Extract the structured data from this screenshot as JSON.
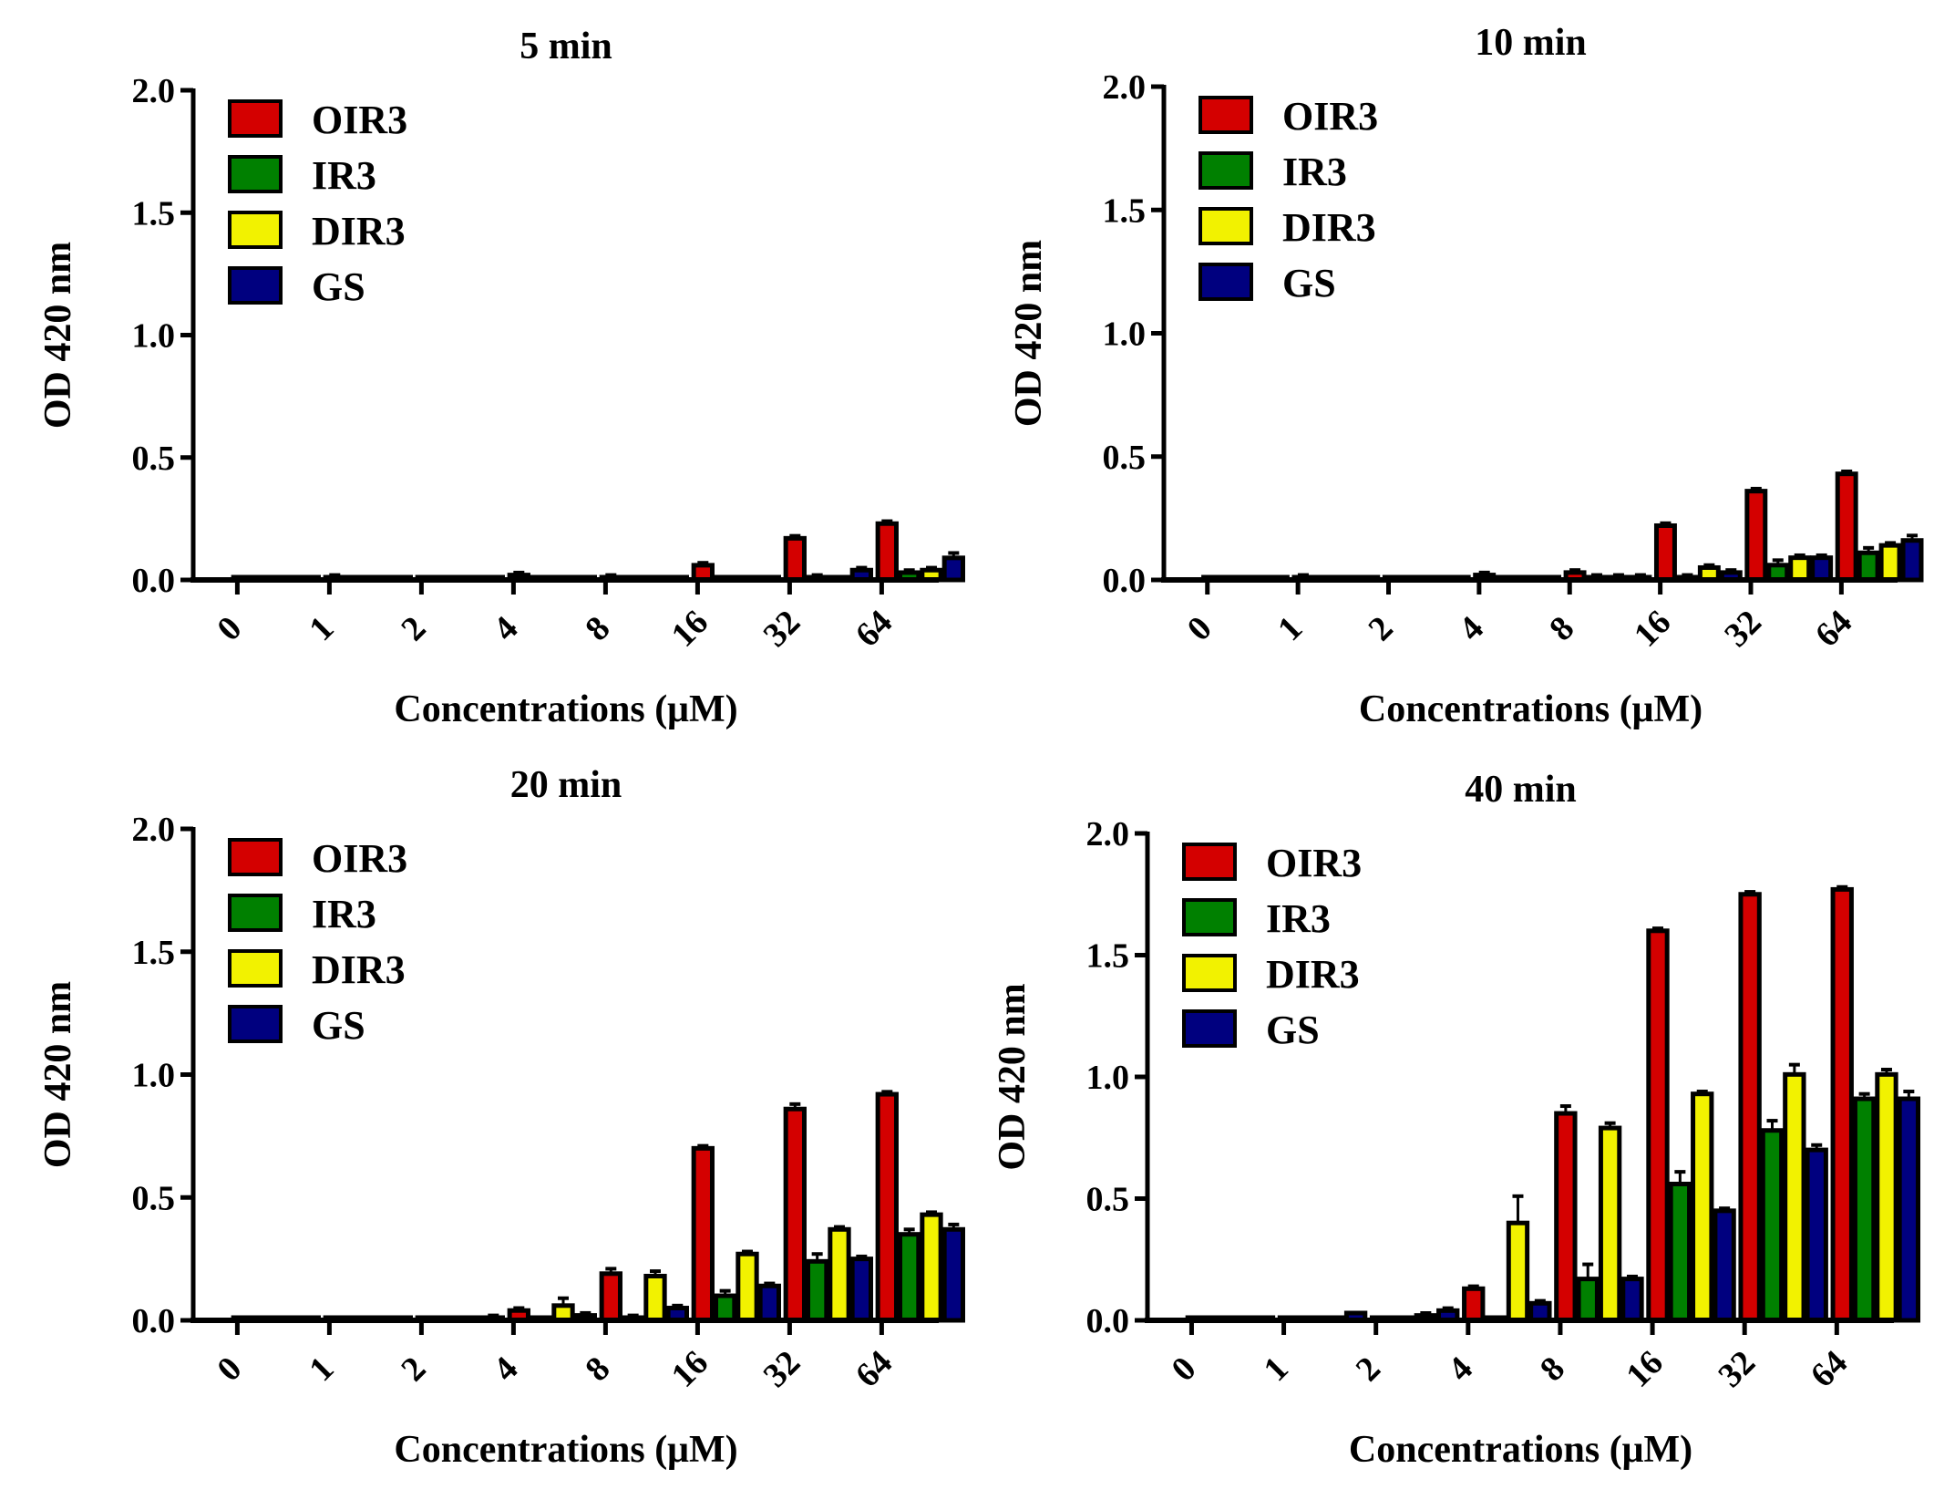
{
  "colors": {
    "OIR3": "#d40000",
    "IR3": "#008000",
    "DIR3": "#f2f200",
    "GS": "#00007f"
  },
  "chart_data": [
    {
      "type": "bar",
      "title": "5 min",
      "xlabel": "Concentrations (μM)",
      "ylabel": "OD 420 nm",
      "ylim": [
        0,
        2.0
      ],
      "yticks": [
        "0.0",
        "0.5",
        "1.0",
        "1.5",
        "2.0"
      ],
      "legend": "top-left",
      "categories": [
        "0",
        "1",
        "2",
        "4",
        "8",
        "16",
        "32",
        "64"
      ],
      "series": [
        {
          "name": "OIR3",
          "values": [
            0,
            0.01,
            0,
            0.02,
            0.01,
            0.06,
            0.17,
            0.23
          ],
          "errors": [
            0,
            0.01,
            0,
            0.01,
            0.01,
            0.01,
            0.01,
            0.01
          ]
        },
        {
          "name": "IR3",
          "values": [
            0,
            0,
            0,
            0,
            0,
            0,
            0.01,
            0.03
          ],
          "errors": [
            0,
            0,
            0,
            0,
            0,
            0.01,
            0.01,
            0.01
          ]
        },
        {
          "name": "DIR3",
          "values": [
            0,
            0,
            0,
            0,
            0,
            0.01,
            0.01,
            0.04
          ],
          "errors": [
            0,
            0,
            0,
            0,
            0,
            0,
            0,
            0.01
          ]
        },
        {
          "name": "GS",
          "values": [
            0,
            0,
            0,
            0,
            0,
            0.01,
            0.04,
            0.09
          ],
          "errors": [
            0,
            0,
            0,
            0,
            0,
            0,
            0.01,
            0.02
          ]
        }
      ]
    },
    {
      "type": "bar",
      "title": "10 min",
      "xlabel": "Concentrations (μM)",
      "ylabel": "OD 420 nm",
      "ylim": [
        0,
        2.0
      ],
      "yticks": [
        "0.0",
        "0.5",
        "1.0",
        "1.5",
        "2.0"
      ],
      "legend": "top-left",
      "categories": [
        "0",
        "1",
        "2",
        "4",
        "8",
        "16",
        "32",
        "64"
      ],
      "series": [
        {
          "name": "OIR3",
          "values": [
            0,
            0.01,
            0.01,
            0.02,
            0.03,
            0.22,
            0.36,
            0.43
          ],
          "errors": [
            0,
            0.01,
            0,
            0.01,
            0.01,
            0.01,
            0.01,
            0.01
          ]
        },
        {
          "name": "IR3",
          "values": [
            0,
            0.01,
            0,
            0,
            0.01,
            0.01,
            0.06,
            0.11
          ],
          "errors": [
            0,
            0,
            0,
            0,
            0.01,
            0.01,
            0.02,
            0.02
          ]
        },
        {
          "name": "DIR3",
          "values": [
            0,
            0.01,
            0.01,
            0,
            0.01,
            0.05,
            0.09,
            0.14
          ],
          "errors": [
            0,
            0,
            0,
            0,
            0.01,
            0.01,
            0.01,
            0.01
          ]
        },
        {
          "name": "GS",
          "values": [
            0,
            0.01,
            0.01,
            0.01,
            0.01,
            0.03,
            0.09,
            0.16
          ],
          "errors": [
            0,
            0,
            0,
            0,
            0.01,
            0.01,
            0.01,
            0.02
          ]
        }
      ]
    },
    {
      "type": "bar",
      "title": "20 min",
      "xlabel": "Concentrations (μM)",
      "ylabel": "OD 420 nm",
      "ylim": [
        0,
        2.0
      ],
      "yticks": [
        "0.0",
        "0.5",
        "1.0",
        "1.5",
        "2.0"
      ],
      "legend": "top-left",
      "categories": [
        "0",
        "1",
        "2",
        "4",
        "8",
        "16",
        "32",
        "64"
      ],
      "series": [
        {
          "name": "OIR3",
          "values": [
            0,
            0,
            0,
            0.04,
            0.19,
            0.7,
            0.86,
            0.92
          ],
          "errors": [
            0,
            0,
            0,
            0.01,
            0.02,
            0.01,
            0.02,
            0.01
          ]
        },
        {
          "name": "IR3",
          "values": [
            0,
            0.01,
            0,
            0,
            0.01,
            0.1,
            0.24,
            0.35
          ],
          "errors": [
            0,
            0,
            0,
            0,
            0.01,
            0.02,
            0.03,
            0.02
          ]
        },
        {
          "name": "DIR3",
          "values": [
            0,
            0.01,
            0,
            0.06,
            0.18,
            0.27,
            0.37,
            0.43
          ],
          "errors": [
            0,
            0,
            0,
            0.03,
            0.02,
            0.01,
            0.01,
            0.01
          ]
        },
        {
          "name": "GS",
          "values": [
            0,
            0.01,
            0.01,
            0.02,
            0.05,
            0.14,
            0.25,
            0.37
          ],
          "errors": [
            0,
            0,
            0.01,
            0.01,
            0.01,
            0.01,
            0.01,
            0.02
          ]
        }
      ]
    },
    {
      "type": "bar",
      "title": "40 min",
      "xlabel": "Concentrations (μM)",
      "ylabel": "OD 420 nm",
      "ylim": [
        0,
        2.0
      ],
      "yticks": [
        "0.0",
        "0.5",
        "1.0",
        "1.5",
        "2.0"
      ],
      "legend": "top-left",
      "categories": [
        "0",
        "1",
        "2",
        "4",
        "8",
        "16",
        "32",
        "64"
      ],
      "series": [
        {
          "name": "OIR3",
          "values": [
            0,
            0.01,
            0.01,
            0.13,
            0.85,
            1.6,
            1.75,
            1.77
          ],
          "errors": [
            0,
            0,
            0,
            0.01,
            0.03,
            0.01,
            0.01,
            0.01
          ]
        },
        {
          "name": "IR3",
          "values": [
            0,
            0.01,
            0.01,
            0,
            0.17,
            0.56,
            0.78,
            0.91
          ],
          "errors": [
            0,
            0,
            0,
            0,
            0.06,
            0.05,
            0.04,
            0.02
          ]
        },
        {
          "name": "DIR3",
          "values": [
            0,
            0,
            0.02,
            0.4,
            0.79,
            0.93,
            1.01,
            1.01
          ],
          "errors": [
            0,
            0,
            0.01,
            0.11,
            0.02,
            0.01,
            0.04,
            0.02
          ]
        },
        {
          "name": "GS",
          "values": [
            0,
            0.03,
            0.04,
            0.07,
            0.17,
            0.45,
            0.7,
            0.91
          ],
          "errors": [
            0,
            0,
            0.01,
            0.01,
            0.01,
            0.01,
            0.02,
            0.03
          ]
        }
      ]
    }
  ]
}
